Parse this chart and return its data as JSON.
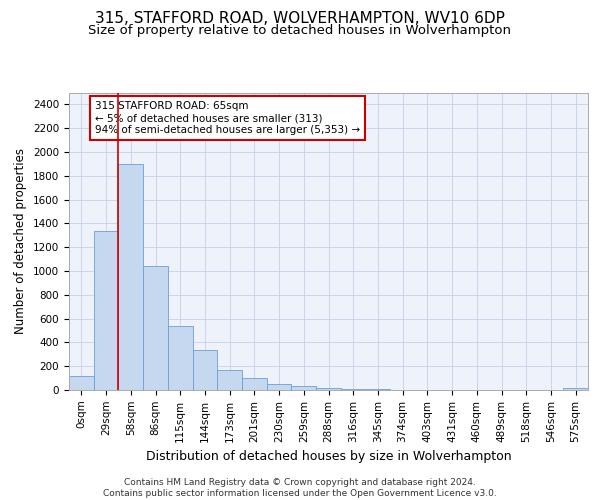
{
  "title1": "315, STAFFORD ROAD, WOLVERHAMPTON, WV10 6DP",
  "title2": "Size of property relative to detached houses in Wolverhampton",
  "xlabel": "Distribution of detached houses by size in Wolverhampton",
  "ylabel": "Number of detached properties",
  "footnote": "Contains HM Land Registry data © Crown copyright and database right 2024.\nContains public sector information licensed under the Open Government Licence v3.0.",
  "bar_labels": [
    "0sqm",
    "29sqm",
    "58sqm",
    "86sqm",
    "115sqm",
    "144sqm",
    "173sqm",
    "201sqm",
    "230sqm",
    "259sqm",
    "288sqm",
    "316sqm",
    "345sqm",
    "374sqm",
    "403sqm",
    "431sqm",
    "460sqm",
    "489sqm",
    "518sqm",
    "546sqm",
    "575sqm"
  ],
  "bar_values": [
    120,
    1340,
    1900,
    1040,
    540,
    335,
    165,
    100,
    50,
    30,
    20,
    10,
    5,
    3,
    2,
    1,
    0,
    0,
    1,
    0,
    20
  ],
  "bar_color": "#c5d8f0",
  "bar_edge_color": "#6a9fd8",
  "ylim": [
    0,
    2500
  ],
  "yticks": [
    0,
    200,
    400,
    600,
    800,
    1000,
    1200,
    1400,
    1600,
    1800,
    2000,
    2200,
    2400
  ],
  "property_line_x": 1.5,
  "property_line_color": "#cc0000",
  "annotation_text": "315 STAFFORD ROAD: 65sqm\n← 5% of detached houses are smaller (313)\n94% of semi-detached houses are larger (5,353) →",
  "annotation_box_color": "#cc0000",
  "bg_color": "#eef2fb",
  "grid_color": "#c8cfea",
  "title1_fontsize": 11,
  "title2_fontsize": 9.5,
  "xlabel_fontsize": 9,
  "ylabel_fontsize": 8.5,
  "tick_fontsize": 7.5,
  "footnote_fontsize": 6.5,
  "annot_fontsize": 7.5
}
